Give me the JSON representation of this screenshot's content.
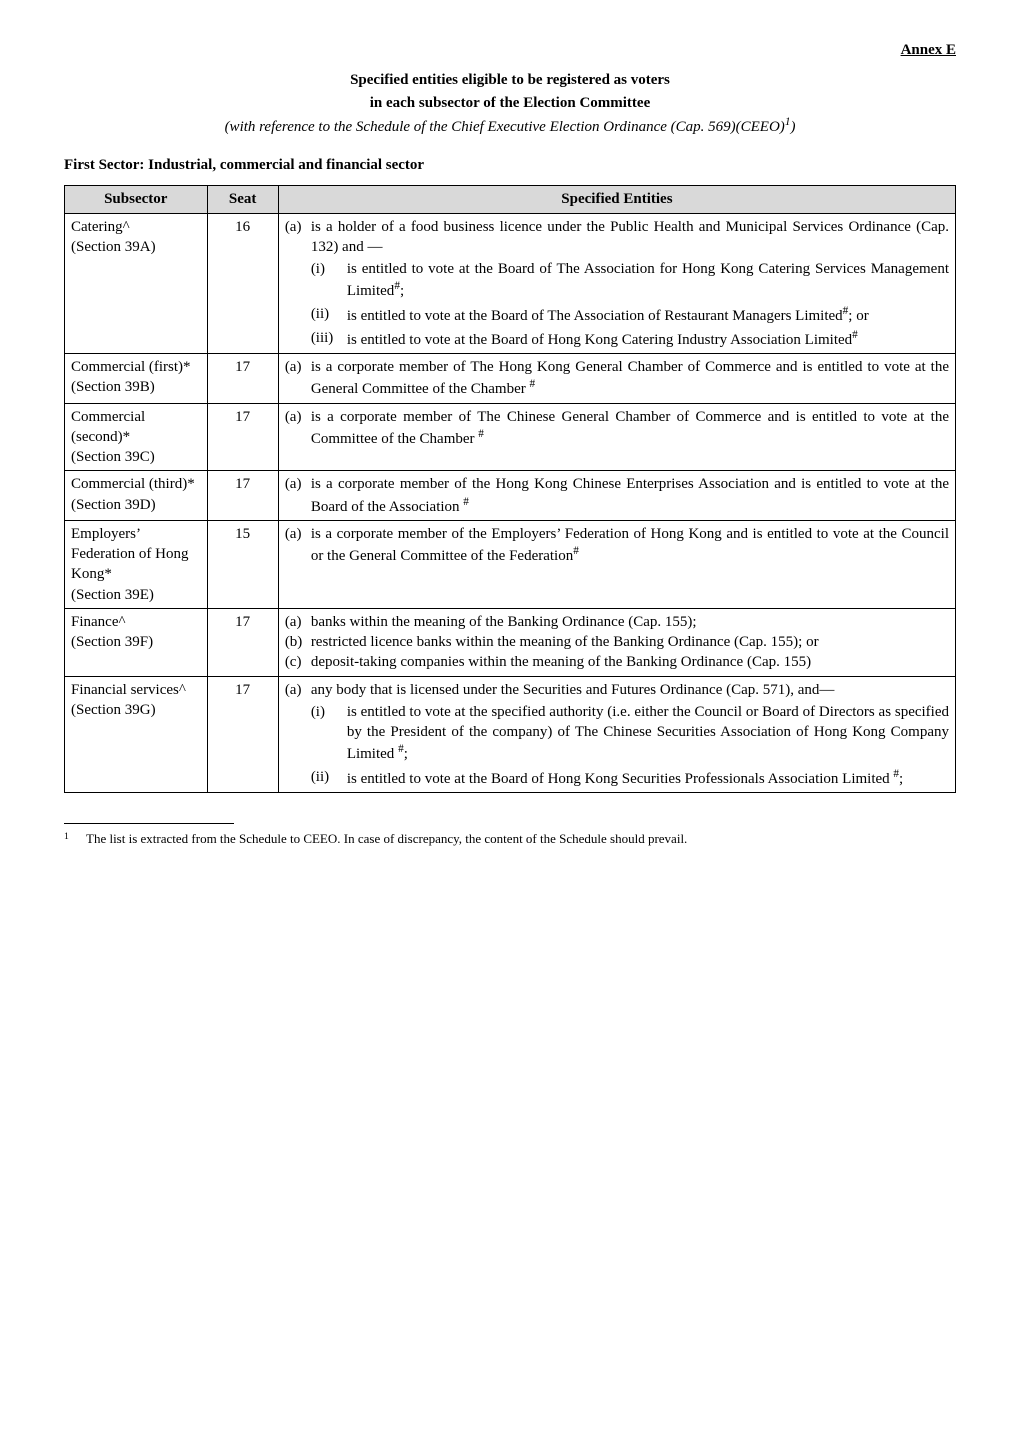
{
  "annex_label": "Annex E",
  "title_line1": "Specified entities eligible to be registered as voters",
  "title_line2": "in each subsector of the Election Committee",
  "subtitle_pre": "(with reference to the Schedule of the Chief Executive Election Ordinance (Cap. 569)(CEEO)",
  "subtitle_sup": "1",
  "subtitle_post": ")",
  "sector_heading": "First Sector: Industrial, commercial and financial sector",
  "columns": {
    "c1": "Subsector",
    "c2": "Seat",
    "c3": "Specified Entities"
  },
  "rows": [
    {
      "subsector_line1": "Catering^",
      "subsector_line2": "(Section 39A)",
      "seat": "16",
      "entities": [
        {
          "marker": "(a)",
          "text_pre": "is a holder of a food business licence under the Public Health and Municipal Services Ordinance (Cap. 132) and —",
          "subs": [
            {
              "marker": "(i)",
              "text": "is entitled to vote at the Board of The Association for Hong Kong Catering Services Management Limited",
              "sup": "#",
              "tail": ";"
            },
            {
              "marker": "(ii)",
              "text": "is entitled to vote at the Board of The Association of Restaurant Managers Limited",
              "sup": "#",
              "tail": "; or"
            },
            {
              "marker": "(iii)",
              "text": "is entitled to vote at the Board of Hong Kong Catering Industry Association Limited",
              "sup": "#",
              "tail": ""
            }
          ]
        }
      ]
    },
    {
      "subsector_line1": "Commercial (first)*",
      "subsector_line2": "(Section 39B)",
      "seat": "17",
      "entities": [
        {
          "marker": "(a)",
          "text": "is a corporate member of The Hong Kong General Chamber of Commerce and is entitled to vote at the General Committee of the Chamber",
          "sup": " #",
          "tail": ""
        }
      ]
    },
    {
      "subsector_line1": "Commercial (second)*",
      "subsector_line2": "(Section 39C)",
      "seat": "17",
      "entities": [
        {
          "marker": "(a)",
          "text": "is a corporate member of The Chinese General Chamber of Commerce and is entitled to vote at the Committee of the Chamber",
          "sup": " #",
          "tail": ""
        }
      ]
    },
    {
      "subsector_line1": "Commercial (third)*",
      "subsector_line2": "(Section 39D)",
      "seat": "17",
      "entities": [
        {
          "marker": "(a)",
          "text": "is a corporate member of the Hong Kong Chinese Enterprises Association and is entitled to vote at the Board of the Association",
          "sup": " #",
          "tail": ""
        }
      ]
    },
    {
      "subsector_line1": "Employers’ Federation of Hong Kong*",
      "subsector_line2": "(Section 39E)",
      "seat": "15",
      "entities": [
        {
          "marker": "(a)",
          "text": "is a corporate member of the Employers’ Federation of Hong Kong and is entitled to vote at the Council or the General Committee of the Federation",
          "sup": "#",
          "tail": ""
        }
      ]
    },
    {
      "subsector_line1": "Finance^",
      "subsector_line2": "(Section 39F)",
      "seat": "17",
      "entities": [
        {
          "marker": "(a)",
          "text": "banks within the meaning of the Banking Ordinance (Cap. 155);",
          "sup": "",
          "tail": ""
        },
        {
          "marker": "(b)",
          "text": "restricted licence banks within the meaning of the Banking Ordinance (Cap. 155); or",
          "sup": "",
          "tail": ""
        },
        {
          "marker": "(c)",
          "text": "deposit-taking companies within the meaning of the Banking Ordinance (Cap. 155)",
          "sup": "",
          "tail": ""
        }
      ]
    },
    {
      "subsector_line1": "Financial services^",
      "subsector_line2": "(Section 39G)",
      "seat": "17",
      "entities": [
        {
          "marker": "(a)",
          "text_pre": "any body that is licensed under the Securities and Futures Ordinance (Cap. 571), and—",
          "subs": [
            {
              "marker": "(i)",
              "text": "is entitled to vote at the specified authority (i.e. either the Council or Board of Directors as specified by the President of the company) of The Chinese Securities Association of Hong Kong Company Limited",
              "sup": " #",
              "tail": ";"
            },
            {
              "marker": "(ii)",
              "text": "is entitled to vote at the Board of Hong Kong Securities Professionals Association Limited",
              "sup": " #",
              "tail": ";"
            }
          ]
        }
      ]
    }
  ],
  "footnote": {
    "marker": "1",
    "text": "The list is extracted from the Schedule to CEEO.   In case of discrepancy, the content of the Schedule should prevail."
  }
}
